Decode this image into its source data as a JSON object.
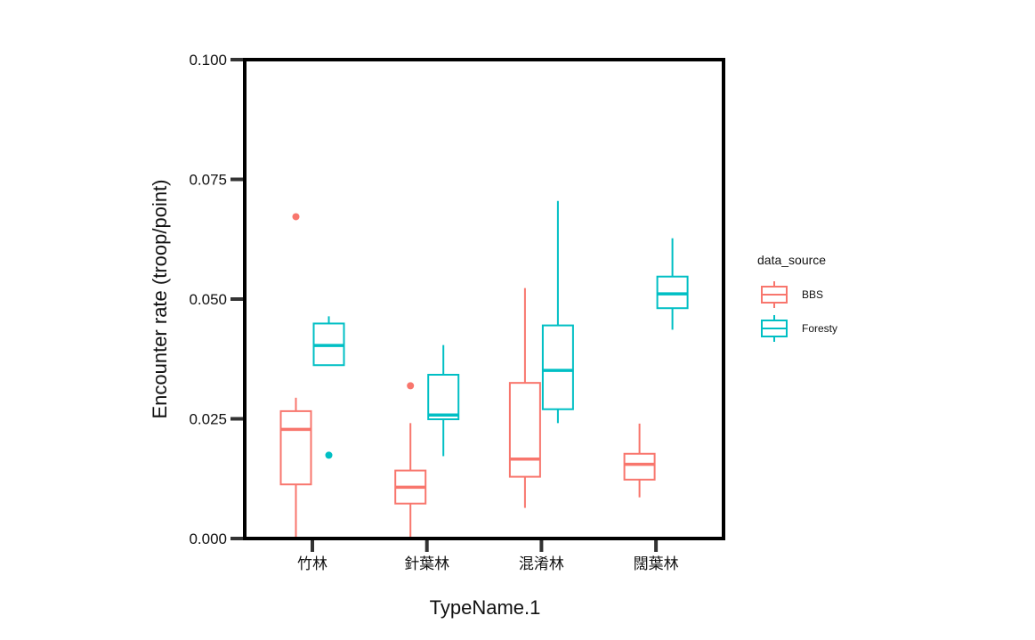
{
  "chart_data": {
    "type": "boxplot",
    "xlabel": "TypeName.1",
    "ylabel": "Encounter rate (troop/point)",
    "ylim": [
      0,
      0.1
    ],
    "yticks": [
      "0.000",
      "0.025",
      "0.050",
      "0.075",
      "0.100"
    ],
    "categories": [
      "竹林",
      "針葉林",
      "混淆林",
      "闊葉林"
    ],
    "legend": {
      "title": "data_source",
      "placement": "right"
    },
    "series": [
      {
        "name": "BBS",
        "color": "#F8766D",
        "boxes": [
          {
            "min": 0.0,
            "q1": 0.0113,
            "median": 0.0228,
            "q3": 0.0266,
            "max": 0.0294,
            "outliers": [
              0.0672
            ]
          },
          {
            "min": 0.0,
            "q1": 0.0073,
            "median": 0.0107,
            "q3": 0.0142,
            "max": 0.0241,
            "outliers": [
              0.0319
            ]
          },
          {
            "min": 0.0064,
            "q1": 0.0129,
            "median": 0.0166,
            "q3": 0.0325,
            "max": 0.0523,
            "outliers": []
          },
          {
            "min": 0.0086,
            "q1": 0.0123,
            "median": 0.0155,
            "q3": 0.0177,
            "max": 0.024,
            "outliers": []
          }
        ]
      },
      {
        "name": "Foresty",
        "color": "#00BFC4",
        "boxes": [
          {
            "min": 0.0362,
            "q1": 0.0362,
            "median": 0.0403,
            "q3": 0.0449,
            "max": 0.0464,
            "outliers": [
              0.0174
            ]
          },
          {
            "min": 0.0172,
            "q1": 0.0249,
            "median": 0.0258,
            "q3": 0.0342,
            "max": 0.0404,
            "outliers": []
          },
          {
            "min": 0.0241,
            "q1": 0.027,
            "median": 0.0351,
            "q3": 0.0445,
            "max": 0.0705,
            "outliers": []
          },
          {
            "min": 0.0436,
            "q1": 0.0481,
            "median": 0.0511,
            "q3": 0.0547,
            "max": 0.0627,
            "outliers": []
          }
        ]
      }
    ],
    "grid": false
  }
}
